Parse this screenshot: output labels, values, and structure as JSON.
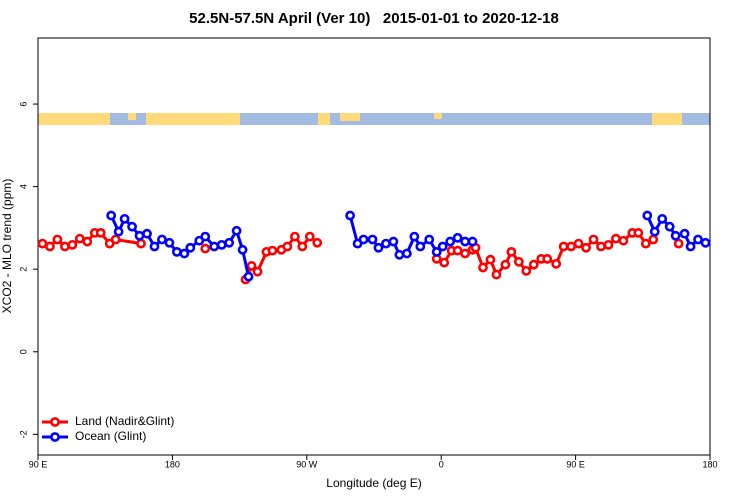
{
  "chart_data": {
    "type": "line",
    "title": "52.5N-57.5N April (Ver 10)   2015-01-01 to 2020-12-18",
    "x_label": "Longitude (deg E)",
    "y_label": "XCO2 - MLO trend (ppm)",
    "xlim": [
      90,
      540
    ],
    "xticks": [
      {
        "value": 90,
        "label": "90 E"
      },
      180,
      {
        "value": 270,
        "label": "90 W"
      },
      {
        "value": 360,
        "label": "0"
      },
      {
        "value": 450,
        "label": "90 E"
      },
      {
        "value": 540,
        "label": "180"
      }
    ],
    "ylim": [
      -2.5,
      7.6
    ],
    "yticks": [
      -2,
      0,
      2,
      4,
      6
    ],
    "legend": "bottomleft",
    "series": [
      {
        "name": "Land (Nadir&Glint)",
        "color": "#ff0000",
        "x": [
          93,
          98,
          103,
          108,
          113,
          118,
          123,
          128,
          132,
          138,
          142,
          159,
          null,
          202,
          null,
          229,
          233,
          237,
          243,
          247,
          253,
          257,
          262,
          267,
          272,
          277,
          null,
          357,
          362,
          367,
          371,
          376,
          381,
          383,
          388,
          393,
          397,
          403,
          407,
          412,
          417,
          422,
          427,
          431,
          437,
          442,
          447,
          452,
          457,
          462,
          467,
          472,
          477,
          482,
          488,
          492,
          497,
          502,
          null,
          519
        ],
        "values": [
          2.62,
          2.55,
          2.72,
          2.55,
          2.59,
          2.74,
          2.67,
          2.88,
          2.88,
          2.62,
          2.72,
          2.62,
          null,
          2.5,
          null,
          1.75,
          2.08,
          1.94,
          2.42,
          2.45,
          2.47,
          2.55,
          2.79,
          2.55,
          2.79,
          2.64,
          null,
          2.25,
          2.16,
          2.45,
          2.45,
          2.38,
          2.47,
          2.52,
          2.04,
          2.23,
          1.87,
          2.11,
          2.42,
          2.18,
          1.96,
          2.11,
          2.25,
          2.25,
          2.13,
          2.55,
          2.55,
          2.62,
          2.52,
          2.72,
          2.55,
          2.59,
          2.74,
          2.69,
          2.88,
          2.88,
          2.62,
          2.72,
          null,
          2.62
        ]
      },
      {
        "name": "Ocean (Glint)",
        "color": "#0000ff",
        "x": [
          139,
          144,
          148,
          153,
          158,
          163,
          168,
          173,
          178,
          183,
          188,
          192,
          198,
          202,
          208,
          213,
          218,
          223,
          227,
          231,
          null,
          299,
          304,
          308,
          314,
          318,
          323,
          328,
          332,
          337,
          342,
          346,
          352,
          357,
          361,
          366,
          371,
          376,
          381,
          null,
          498,
          503,
          508,
          513,
          517,
          523,
          527,
          532,
          537
        ],
        "values": [
          3.3,
          2.91,
          3.22,
          3.03,
          2.81,
          2.86,
          2.55,
          2.72,
          2.64,
          2.42,
          2.38,
          2.52,
          2.69,
          2.79,
          2.55,
          2.59,
          2.64,
          2.93,
          2.47,
          1.82,
          null,
          3.3,
          2.62,
          2.72,
          2.72,
          2.52,
          2.62,
          2.67,
          2.35,
          2.38,
          2.79,
          2.55,
          2.72,
          2.42,
          2.55,
          2.67,
          2.76,
          2.67,
          2.67,
          null,
          3.3,
          2.91,
          3.22,
          3.03,
          2.81,
          2.86,
          2.55,
          2.72,
          2.64
        ]
      }
    ]
  }
}
